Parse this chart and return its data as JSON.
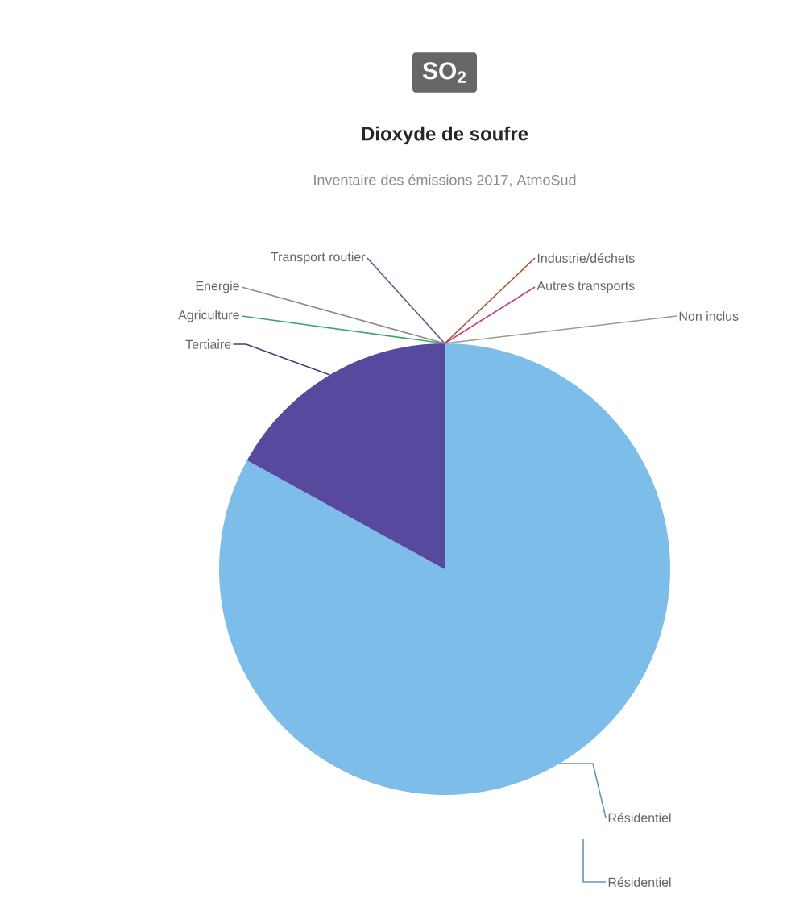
{
  "chart_data": {
    "type": "pie",
    "title": "SO$_{2}$",
    "subtitle": "Dioxyde de soufre",
    "categories": [
      "Non inclus",
      "Résidentiel",
      "Tertiaire",
      "Agriculture",
      "Energie",
      "Transport routier",
      "Industrie/déchets",
      "Autres transports"
    ],
    "values": [
      0,
      83,
      17,
      0,
      0,
      0,
      0,
      0
    ],
    "colors": [
      "#9a9a9a",
      "#7dbde9",
      "#574a9e",
      "#3aa86b",
      "#8a8a8a",
      "#6b4f8a",
      "#a0522d",
      "#c2407e"
    ],
    "annotations": [
      "Inventaire des émissions 2017, AtmoSud",
      "Résidentiel"
    ]
  }
}
